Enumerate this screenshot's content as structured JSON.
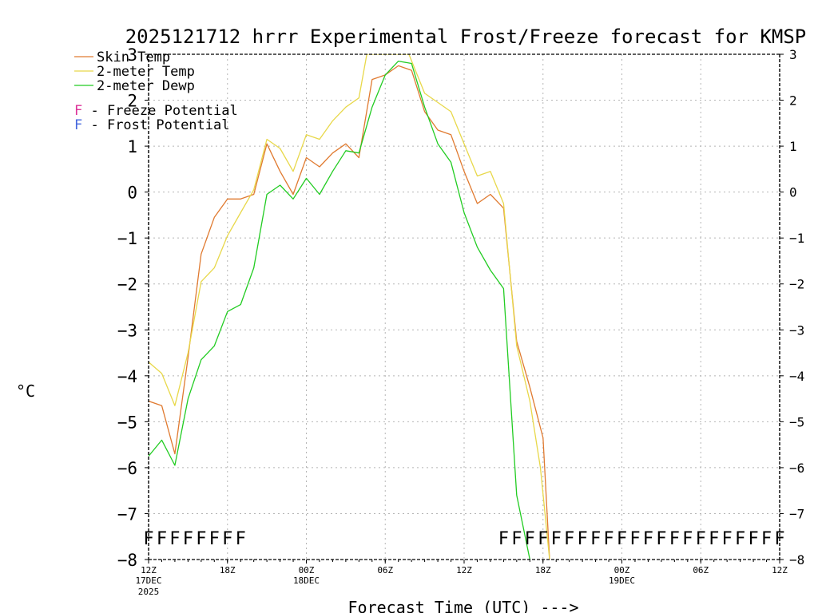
{
  "chart_data": {
    "type": "line",
    "title": "2025121712 hrrr Experimental Frost/Freeze forecast for KMSP",
    "xlabel": "Forecast Time (UTC) --->",
    "ylabel": "°C",
    "ylim": [
      -8,
      3
    ],
    "xlim": [
      0,
      48
    ],
    "yticks": [
      3,
      2,
      1,
      0,
      -1,
      -2,
      -3,
      -4,
      -5,
      -6,
      -7,
      -8
    ],
    "xticks": [
      {
        "hour": 0,
        "label": "12Z",
        "date": "17DEC",
        "year": "2025"
      },
      {
        "hour": 6,
        "label": "18Z"
      },
      {
        "hour": 12,
        "label": "00Z",
        "date": "18DEC"
      },
      {
        "hour": 18,
        "label": "06Z"
      },
      {
        "hour": 24,
        "label": "12Z"
      },
      {
        "hour": 30,
        "label": "18Z"
      },
      {
        "hour": 36,
        "label": "00Z",
        "date": "19DEC"
      },
      {
        "hour": 42,
        "label": "06Z"
      },
      {
        "hour": 48,
        "label": "12Z"
      }
    ],
    "grid": true,
    "legend": {
      "position": "top-left",
      "entries": [
        {
          "name": "Skin Temp",
          "color": "#e07a30"
        },
        {
          "name": "2-meter Temp",
          "color": "#e8d84a"
        },
        {
          "name": "2-meter Dewp",
          "color": "#22cc22"
        }
      ],
      "notes": [
        {
          "symbol": "F",
          "text": " - Freeze Potential",
          "color": "#dd3399"
        },
        {
          "symbol": "F",
          "text": " - Frost Potential",
          "color": "#4466dd"
        }
      ]
    },
    "series": [
      {
        "name": "Skin Temp",
        "color": "#e07a30",
        "x": [
          0,
          1,
          2,
          3,
          4,
          5,
          6,
          7,
          8,
          9,
          10,
          11,
          12,
          13,
          14,
          15,
          16,
          17,
          18,
          19,
          20,
          21,
          22,
          23,
          24,
          25,
          26,
          27,
          28,
          29,
          30,
          30.5
        ],
        "values": [
          -4.55,
          -4.65,
          -5.7,
          -3.6,
          -1.35,
          -0.55,
          -0.15,
          -0.15,
          -0.05,
          1.05,
          0.45,
          -0.05,
          0.75,
          0.55,
          0.85,
          1.05,
          0.75,
          2.45,
          2.55,
          2.75,
          2.65,
          1.75,
          1.35,
          1.25,
          0.45,
          -0.25,
          -0.05,
          -0.35,
          -3.25,
          -4.25,
          -5.35,
          -8.0
        ]
      },
      {
        "name": "2-meter Temp",
        "color": "#e8d84a",
        "x": [
          0,
          1,
          2,
          3,
          4,
          5,
          6,
          7,
          8,
          9,
          10,
          11,
          12,
          13,
          14,
          15,
          16,
          16.6,
          17.6,
          19,
          19.8,
          21,
          22,
          23,
          24,
          25,
          26,
          27,
          28,
          29,
          29.8,
          30.5
        ],
        "values": [
          -3.7,
          -3.95,
          -4.65,
          -3.5,
          -1.95,
          -1.65,
          -0.95,
          -0.45,
          0.05,
          1.15,
          0.95,
          0.45,
          1.25,
          1.15,
          1.55,
          1.85,
          2.05,
          3.0,
          3.0,
          3.0,
          3.0,
          2.15,
          1.95,
          1.75,
          1.05,
          0.35,
          0.45,
          -0.25,
          -3.35,
          -4.55,
          -6.0,
          -8.0
        ]
      },
      {
        "name": "2-meter Dewp",
        "color": "#22cc22",
        "x": [
          0,
          1,
          2,
          3,
          4,
          5,
          6,
          7,
          8,
          9,
          10,
          11,
          12,
          13,
          14,
          15,
          16,
          17,
          18,
          19,
          20,
          21,
          22,
          23,
          24,
          25,
          26,
          27,
          28,
          29
        ],
        "values": [
          -5.75,
          -5.4,
          -5.95,
          -4.5,
          -3.65,
          -3.35,
          -2.6,
          -2.45,
          -1.65,
          -0.05,
          0.15,
          -0.15,
          0.3,
          -0.05,
          0.45,
          0.9,
          0.85,
          1.85,
          2.55,
          2.85,
          2.8,
          1.85,
          1.05,
          0.65,
          -0.45,
          -1.2,
          -1.7,
          -2.1,
          -6.6,
          -8.0
        ]
      }
    ],
    "freeze_flags": {
      "symbol": "F",
      "color": "#dd3399",
      "hours": [
        0,
        1,
        2,
        3,
        4,
        5,
        6,
        7,
        27,
        28,
        29,
        30,
        31,
        32,
        33,
        34,
        35,
        36,
        37,
        38,
        39,
        40,
        41,
        42,
        43,
        44,
        45,
        46,
        47,
        48
      ]
    }
  }
}
